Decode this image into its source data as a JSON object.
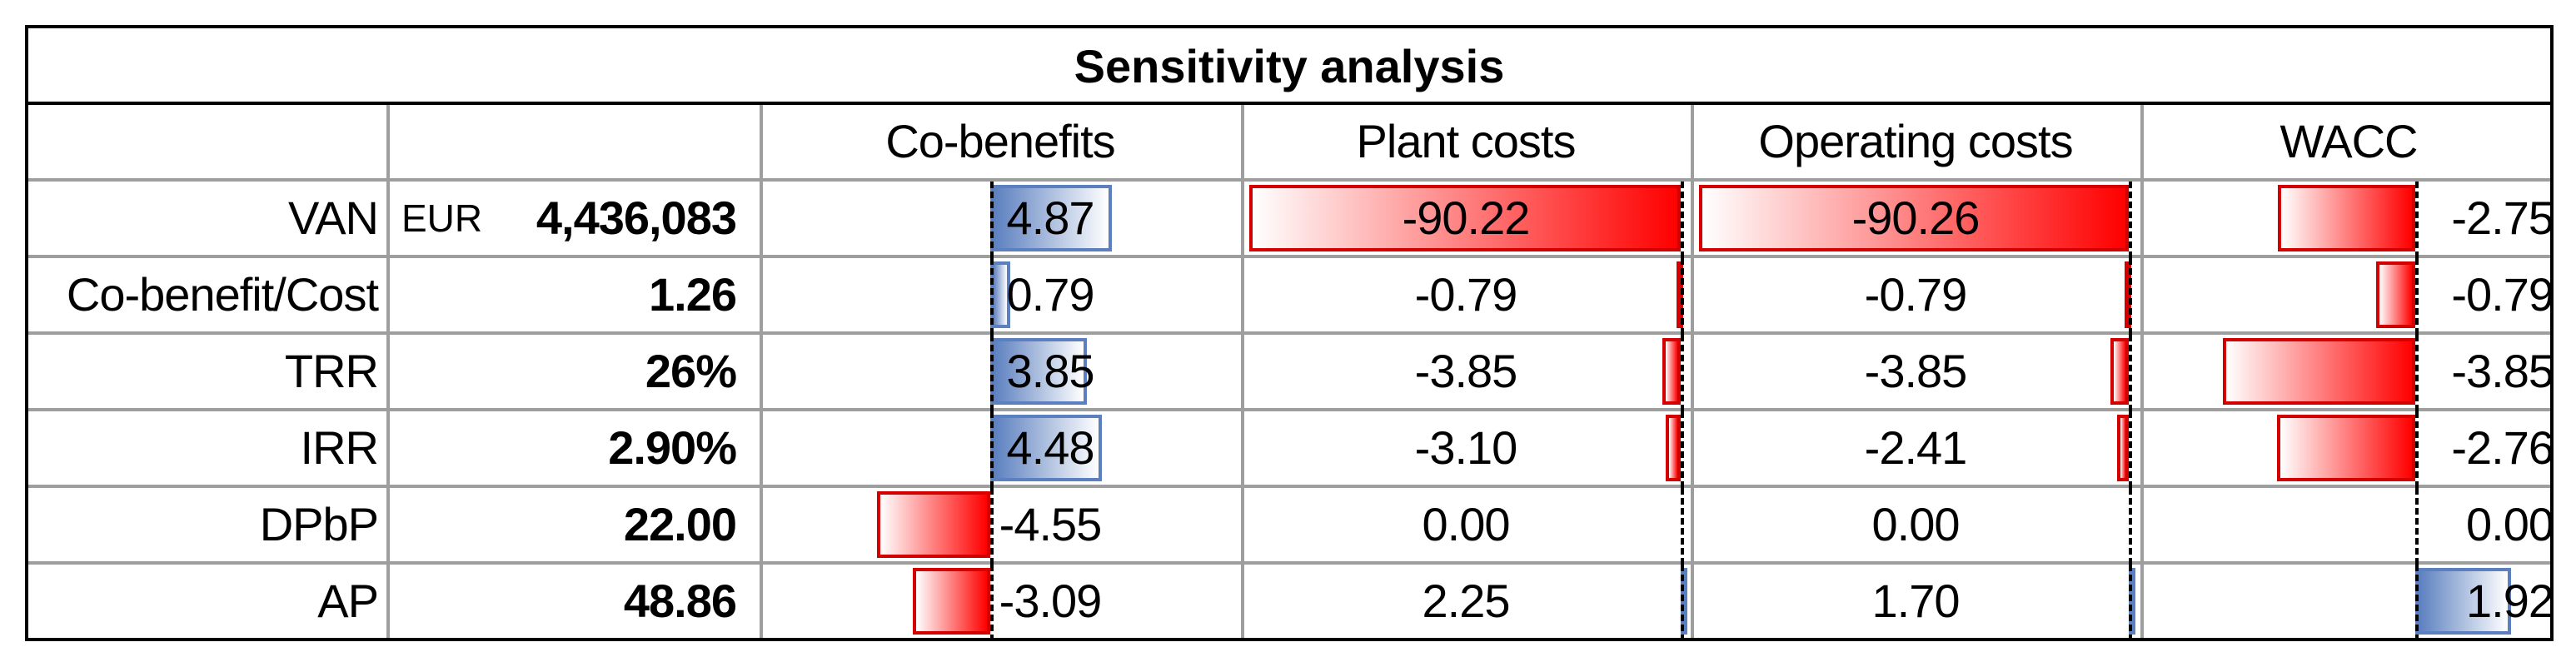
{
  "title": "Sensitivity analysis",
  "headers": [
    "Co-benefits",
    "Plant costs",
    "Operating costs",
    "WACC"
  ],
  "currency": "EUR",
  "colors": {
    "positive_bar": "#5b7fbf",
    "negative_bar": "#ff0000",
    "grid": "#9e9e9e"
  },
  "rows": [
    {
      "label": "VAN",
      "value": "4,436,083",
      "cells": [
        "4.87",
        "-90.22",
        "-90.26",
        "-2.75"
      ],
      "nums": [
        4.87,
        -90.22,
        -90.26,
        -2.75
      ]
    },
    {
      "label": "Co-benefit/Cost",
      "value": "1.26",
      "cells": [
        "0.79",
        "-0.79",
        "-0.79",
        "-0.79"
      ],
      "nums": [
        0.79,
        -0.79,
        -0.79,
        -0.79
      ]
    },
    {
      "label": "TRR",
      "value": "26%",
      "cells": [
        "3.85",
        "-3.85",
        "-3.85",
        "-3.85"
      ],
      "nums": [
        3.85,
        -3.85,
        -3.85,
        -3.85
      ]
    },
    {
      "label": "IRR",
      "value": "2.90%",
      "cells": [
        "4.48",
        "-3.10",
        "-2.41",
        "-2.76"
      ],
      "nums": [
        4.48,
        -3.1,
        -2.41,
        -2.76
      ]
    },
    {
      "label": "DPbP",
      "value": "22.00",
      "cells": [
        "-4.55",
        "0.00",
        "0.00",
        "0.00"
      ],
      "nums": [
        -4.55,
        0,
        0,
        0
      ]
    },
    {
      "label": "AP",
      "value": "48.86",
      "cells": [
        "-3.09",
        "2.25",
        "1.70",
        "1.92"
      ],
      "nums": [
        -3.09,
        2.25,
        1.7,
        1.92
      ]
    }
  ]
}
